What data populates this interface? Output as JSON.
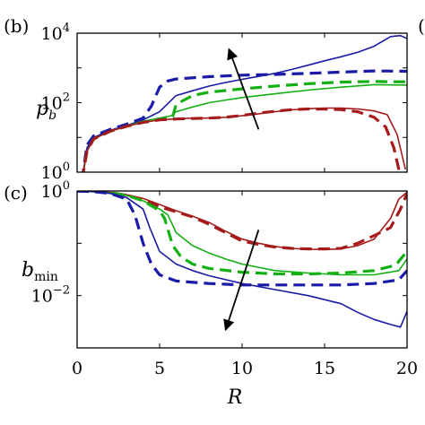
{
  "chart_data": [
    {
      "panel_label": "(b)",
      "cut_off_label": "(",
      "type": "line",
      "ylabel": "p",
      "ylabel_sub": "b",
      "xlim": [
        0,
        20
      ],
      "ylim": [
        1,
        10000
      ],
      "yscale": "log",
      "y_ticks": [
        {
          "value": 1,
          "base": "10",
          "exp": "0"
        },
        {
          "value": 100,
          "base": "10",
          "exp": "2"
        },
        {
          "value": 10000,
          "base": "10",
          "exp": "4"
        }
      ],
      "arrow": {
        "from": [
          11,
          17
        ],
        "to": [
          9.2,
          3500
        ]
      },
      "series": [
        {
          "color": "#1a1aa8",
          "style": "solid",
          "points": [
            [
              0.3,
              0.6
            ],
            [
              0.6,
              5
            ],
            [
              1,
              10
            ],
            [
              2,
              16
            ],
            [
              3,
              22
            ],
            [
              4,
              32
            ],
            [
              5,
              55
            ],
            [
              6,
              160
            ],
            [
              7,
              220
            ],
            [
              8,
              300
            ],
            [
              9,
              380
            ],
            [
              10,
              470
            ],
            [
              11,
              570
            ],
            [
              12,
              700
            ],
            [
              13,
              900
            ],
            [
              14,
              1200
            ],
            [
              15,
              1600
            ],
            [
              16,
              2100
            ],
            [
              17,
              2800
            ],
            [
              18,
              4200
            ],
            [
              19,
              8000
            ],
            [
              19.6,
              8500
            ],
            [
              20,
              7000
            ]
          ]
        },
        {
          "color": "#1a1aa8",
          "style": "dashed",
          "points": [
            [
              0.3,
              0.6
            ],
            [
              0.6,
              6
            ],
            [
              1,
              11
            ],
            [
              2,
              17
            ],
            [
              3,
              24
            ],
            [
              4,
              36
            ],
            [
              4.5,
              80
            ],
            [
              5,
              280
            ],
            [
              5.5,
              420
            ],
            [
              6,
              480
            ],
            [
              8,
              560
            ],
            [
              10,
              620
            ],
            [
              12,
              650
            ],
            [
              14,
              700
            ],
            [
              16,
              760
            ],
            [
              18,
              820
            ],
            [
              20,
              800
            ]
          ]
        },
        {
          "color": "#12b012",
          "style": "solid",
          "points": [
            [
              0.3,
              0.6
            ],
            [
              0.6,
              4
            ],
            [
              1,
              9
            ],
            [
              2,
              15
            ],
            [
              3,
              21
            ],
            [
              4,
              29
            ],
            [
              5,
              36
            ],
            [
              5.7,
              42
            ],
            [
              6,
              55
            ],
            [
              7,
              75
            ],
            [
              8,
              100
            ],
            [
              10,
              140
            ],
            [
              12,
              180
            ],
            [
              14,
              230
            ],
            [
              16,
              280
            ],
            [
              18,
              330
            ],
            [
              20,
              320
            ]
          ]
        },
        {
          "color": "#12b012",
          "style": "dashed",
          "points": [
            [
              0.3,
              0.6
            ],
            [
              0.6,
              4
            ],
            [
              1,
              9
            ],
            [
              2,
              15
            ],
            [
              3,
              21
            ],
            [
              4,
              28
            ],
            [
              5,
              34
            ],
            [
              5.8,
              40
            ],
            [
              6,
              90
            ],
            [
              7,
              160
            ],
            [
              8,
              200
            ],
            [
              10,
              250
            ],
            [
              12,
              300
            ],
            [
              14,
              350
            ],
            [
              16,
              390
            ],
            [
              18,
              410
            ],
            [
              19,
              400
            ],
            [
              20,
              400
            ]
          ]
        },
        {
          "color": "#a51b1b",
          "style": "solid",
          "points": [
            [
              0.3,
              0.6
            ],
            [
              0.6,
              4
            ],
            [
              1,
              9
            ],
            [
              2,
              15
            ],
            [
              3,
              21
            ],
            [
              4,
              27
            ],
            [
              5,
              32
            ],
            [
              6,
              34
            ],
            [
              7,
              36
            ],
            [
              8,
              36
            ],
            [
              9,
              38
            ],
            [
              10,
              42
            ],
            [
              11,
              48
            ],
            [
              12,
              55
            ],
            [
              13,
              62
            ],
            [
              14,
              67
            ],
            [
              15,
              70
            ],
            [
              16,
              70
            ],
            [
              17,
              66
            ],
            [
              18,
              58
            ],
            [
              18.8,
              45
            ],
            [
              19.4,
              12
            ],
            [
              19.7,
              3
            ],
            [
              19.9,
              1.2
            ]
          ]
        },
        {
          "color": "#a51b1b",
          "style": "dashed",
          "points": [
            [
              0.3,
              0.6
            ],
            [
              0.6,
              4
            ],
            [
              1,
              9
            ],
            [
              2,
              15
            ],
            [
              3,
              21
            ],
            [
              4,
              27
            ],
            [
              5,
              32
            ],
            [
              6,
              34
            ],
            [
              7,
              35
            ],
            [
              8,
              36
            ],
            [
              9,
              38
            ],
            [
              10,
              43
            ],
            [
              11,
              50
            ],
            [
              12,
              57
            ],
            [
              13,
              63
            ],
            [
              14,
              66
            ],
            [
              15,
              65
            ],
            [
              16,
              63
            ],
            [
              17,
              55
            ],
            [
              18,
              38
            ],
            [
              18.7,
              20
            ],
            [
              19.2,
              5
            ],
            [
              19.5,
              1.2
            ],
            [
              19.6,
              0.6
            ]
          ]
        }
      ]
    },
    {
      "panel_label": "(c)",
      "type": "line",
      "ylabel": "b",
      "ylabel_sub": "min",
      "xlim": [
        0,
        20
      ],
      "ylim": [
        0.001,
        1
      ],
      "yscale": "log",
      "y_ticks": [
        {
          "value": 0.01,
          "base": "10",
          "exp": "−2"
        },
        {
          "value": 1,
          "base": "10",
          "exp": "0"
        }
      ],
      "x_ticks": [
        0,
        5,
        10,
        15,
        20
      ],
      "xlabel": "R",
      "arrow": {
        "from": [
          11,
          0.18
        ],
        "to": [
          9,
          0.0022
        ]
      },
      "series": [
        {
          "color": "#a51b1b",
          "style": "solid",
          "points": [
            [
              0,
              1
            ],
            [
              1,
              0.98
            ],
            [
              2,
              0.94
            ],
            [
              3,
              0.85
            ],
            [
              4,
              0.72
            ],
            [
              5,
              0.55
            ],
            [
              6,
              0.42
            ],
            [
              7,
              0.33
            ],
            [
              8,
              0.25
            ],
            [
              9,
              0.17
            ],
            [
              10,
              0.12
            ],
            [
              11,
              0.1
            ],
            [
              12,
              0.087
            ],
            [
              13,
              0.08
            ],
            [
              14,
              0.077
            ],
            [
              15,
              0.076
            ],
            [
              16,
              0.078
            ],
            [
              17,
              0.09
            ],
            [
              18,
              0.12
            ],
            [
              19,
              0.3
            ],
            [
              19.5,
              0.7
            ],
            [
              20,
              0.95
            ]
          ]
        },
        {
          "color": "#a51b1b",
          "style": "dashed",
          "points": [
            [
              0,
              1
            ],
            [
              1,
              0.98
            ],
            [
              2,
              0.93
            ],
            [
              3,
              0.83
            ],
            [
              4,
              0.68
            ],
            [
              5,
              0.5
            ],
            [
              6,
              0.4
            ],
            [
              7,
              0.32
            ],
            [
              8,
              0.23
            ],
            [
              9,
              0.16
            ],
            [
              10,
              0.11
            ],
            [
              11,
              0.095
            ],
            [
              12,
              0.085
            ],
            [
              13,
              0.08
            ],
            [
              14,
              0.078
            ],
            [
              15,
              0.078
            ],
            [
              16,
              0.08
            ],
            [
              17,
              0.1
            ],
            [
              18,
              0.14
            ],
            [
              19,
              0.2
            ],
            [
              19.6,
              0.45
            ],
            [
              20,
              0.9
            ]
          ]
        },
        {
          "color": "#12b012",
          "style": "solid",
          "points": [
            [
              0,
              1
            ],
            [
              1,
              0.97
            ],
            [
              2,
              0.92
            ],
            [
              3,
              0.82
            ],
            [
              4,
              0.65
            ],
            [
              5,
              0.45
            ],
            [
              5.5,
              0.35
            ],
            [
              6,
              0.16
            ],
            [
              7,
              0.09
            ],
            [
              8,
              0.065
            ],
            [
              9,
              0.05
            ],
            [
              10,
              0.04
            ],
            [
              12,
              0.03
            ],
            [
              14,
              0.027
            ],
            [
              16,
              0.025
            ],
            [
              18,
              0.025
            ],
            [
              19.5,
              0.03
            ],
            [
              20,
              0.05
            ]
          ]
        },
        {
          "color": "#12b012",
          "style": "dashed",
          "points": [
            [
              0,
              1
            ],
            [
              1,
              0.97
            ],
            [
              2,
              0.92
            ],
            [
              3,
              0.82
            ],
            [
              4,
              0.65
            ],
            [
              5,
              0.42
            ],
            [
              5.3,
              0.3
            ],
            [
              5.8,
              0.09
            ],
            [
              6.3,
              0.055
            ],
            [
              7,
              0.04
            ],
            [
              8,
              0.033
            ],
            [
              10,
              0.028
            ],
            [
              12,
              0.026
            ],
            [
              14,
              0.026
            ],
            [
              16,
              0.027
            ],
            [
              18,
              0.03
            ],
            [
              19.3,
              0.038
            ],
            [
              20,
              0.07
            ]
          ]
        },
        {
          "color": "#1a1aa8",
          "style": "solid",
          "points": [
            [
              0,
              1
            ],
            [
              1,
              0.97
            ],
            [
              2,
              0.9
            ],
            [
              3,
              0.75
            ],
            [
              4,
              0.45
            ],
            [
              4.4,
              0.2
            ],
            [
              5,
              0.07
            ],
            [
              6,
              0.04
            ],
            [
              7,
              0.03
            ],
            [
              8,
              0.024
            ],
            [
              10,
              0.017
            ],
            [
              12,
              0.013
            ],
            [
              14,
              0.01
            ],
            [
              16,
              0.007
            ],
            [
              17,
              0.0048
            ],
            [
              18,
              0.0035
            ],
            [
              19,
              0.0028
            ],
            [
              19.6,
              0.0025
            ],
            [
              20,
              0.005
            ]
          ]
        },
        {
          "color": "#1a1aa8",
          "style": "dashed",
          "points": [
            [
              0,
              1
            ],
            [
              1,
              0.97
            ],
            [
              2,
              0.9
            ],
            [
              3,
              0.7
            ],
            [
              3.5,
              0.35
            ],
            [
              4,
              0.1
            ],
            [
              4.5,
              0.04
            ],
            [
              5,
              0.025
            ],
            [
              6,
              0.019
            ],
            [
              8,
              0.017
            ],
            [
              10,
              0.016
            ],
            [
              12,
              0.016
            ],
            [
              14,
              0.016
            ],
            [
              16,
              0.016
            ],
            [
              18,
              0.017
            ],
            [
              19.5,
              0.02
            ],
            [
              20,
              0.03
            ]
          ]
        }
      ]
    }
  ]
}
